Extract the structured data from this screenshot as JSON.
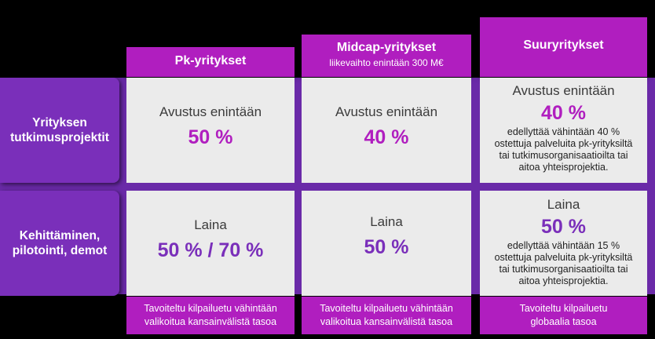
{
  "columns": [
    {
      "title": "Pk-yritykset",
      "subtitle": ""
    },
    {
      "title": "Midcap-yritykset",
      "subtitle": "liikevaihto enintään 300 M€"
    },
    {
      "title": "Suuryritykset",
      "subtitle": ""
    }
  ],
  "rows": [
    {
      "label_line1": "Yrityksen",
      "label_line2": "tutkimusprojektit"
    },
    {
      "label_line1": "Kehittäminen,",
      "label_line2": "pilotointi, demot"
    }
  ],
  "cells": {
    "r1c1": {
      "label": "Avustus enintään",
      "value": "50 %"
    },
    "r1c2": {
      "label": "Avustus enintään",
      "value": "40 %"
    },
    "r1c3": {
      "label": "Avustus enintään",
      "value": "40 %",
      "note_1": "edellyttää vähintään 40 %",
      "note_2": "ostettuja palveluita pk-yrityksiltä",
      "note_3": "tai tutkimusorganisaatioilta tai",
      "note_4": "aitoa yhteisprojektia."
    },
    "r2c1": {
      "label": "Laina",
      "value": "50 % / 70 %"
    },
    "r2c2": {
      "label": "Laina",
      "value": "50 %"
    },
    "r2c3": {
      "label": "Laina",
      "value": "50 %",
      "note_1": "edellyttää vähintään 15 %",
      "note_2": "ostettuja palveluita pk-yrityksiltä",
      "note_3": "tai tutkimusorganisaatioilta tai",
      "note_4": "aitoa yhteisprojektia."
    }
  },
  "footers": [
    {
      "line1": "Tavoiteltu kilpailuetu vähintään",
      "line2": "valikoitua kansainvälistä tasoa"
    },
    {
      "line1": "Tavoiteltu kilpailuetu vähintään",
      "line2": "valikoitua kansainvälistä tasoa"
    },
    {
      "line1": "Tavoiteltu kilpailuetu",
      "line2": "globaalia tasoa"
    }
  ],
  "colors": {
    "magenta": "#b01ebf",
    "purple": "#7a2fba",
    "cell_bg": "#ebebeb"
  }
}
